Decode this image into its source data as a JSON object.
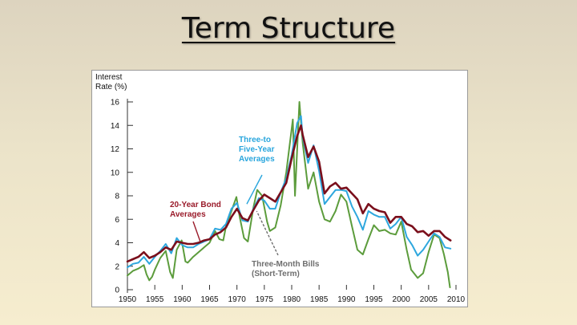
{
  "slide": {
    "title": "Term Structure"
  },
  "colors": {
    "bond20": "#7a0f1c",
    "fiveYear": "#2ea7de",
    "bills": "#5c9c3c",
    "annotationBlue": "#2aa6dd",
    "annotationRed": "#9a1b2a",
    "annotationGray": "#6e6e6e"
  },
  "chart_data": {
    "type": "line",
    "title": "",
    "ylabel_lines": [
      "Interest",
      "Rate (%)"
    ],
    "xlabel": "",
    "xlim": [
      1950,
      2010
    ],
    "ylim": [
      0,
      16
    ],
    "x_ticks": [
      1950,
      1955,
      1960,
      1965,
      1970,
      1975,
      1980,
      1985,
      1990,
      1995,
      2000,
      2005,
      2010
    ],
    "y_ticks": [
      0,
      2,
      4,
      6,
      8,
      10,
      12,
      14,
      16
    ],
    "grid": false,
    "annotations": [
      {
        "lines": [
          "Three-to",
          "Five-Year",
          "Averages"
        ],
        "color_key": "annotationBlue",
        "series": "fiveYear"
      },
      {
        "lines": [
          "20-Year Bond",
          "Averages"
        ],
        "color_key": "annotationRed",
        "series": "bond20"
      },
      {
        "lines": [
          "Three-Month Bills",
          "(Short-Term)"
        ],
        "color_key": "annotationGray",
        "series": "bills"
      }
    ],
    "series": [
      {
        "key": "bills",
        "x": [
          1950,
          1951,
          1952,
          1953,
          1953.5,
          1954,
          1954.5,
          1955,
          1956,
          1957,
          1957.8,
          1958.3,
          1959,
          1959.9,
          1960.6,
          1961,
          1962,
          1963,
          1964,
          1965,
          1966,
          1966.8,
          1967.5,
          1968,
          1969,
          1969.9,
          1970.5,
          1971.3,
          1972,
          1973,
          1973.7,
          1974.6,
          1975.5,
          1976,
          1977,
          1978,
          1979,
          1980.2,
          1980.6,
          1981.4,
          1982,
          1983,
          1984,
          1985,
          1986,
          1987,
          1988,
          1989,
          1990,
          1991,
          1992,
          1993,
          1994,
          1995,
          1996,
          1997,
          1998,
          1999,
          2000,
          2001,
          2001.8,
          2002,
          2003,
          2004,
          2005,
          2006,
          2007,
          2007.8,
          2008.5,
          2008.9
        ],
        "y": [
          1.2,
          1.6,
          1.8,
          2.1,
          1.3,
          0.8,
          1.1,
          1.7,
          2.7,
          3.3,
          1.5,
          1.0,
          3.4,
          4.2,
          2.4,
          2.3,
          2.8,
          3.2,
          3.6,
          4.0,
          5.0,
          4.3,
          4.2,
          5.4,
          6.7,
          7.9,
          6.2,
          4.4,
          4.1,
          7.0,
          8.5,
          8.0,
          5.8,
          5.0,
          5.3,
          7.2,
          10.0,
          14.5,
          8.0,
          16.0,
          12.5,
          8.6,
          10.0,
          7.5,
          6.0,
          5.8,
          6.7,
          8.1,
          7.5,
          5.4,
          3.4,
          3.0,
          4.3,
          5.5,
          5.0,
          5.1,
          4.8,
          4.7,
          5.8,
          3.4,
          1.7,
          1.6,
          1.0,
          1.4,
          3.2,
          4.7,
          4.4,
          3.0,
          1.5,
          0.2
        ]
      },
      {
        "key": "fiveYear",
        "x": [
          1950,
          1951,
          1952,
          1953,
          1954,
          1955,
          1956,
          1957,
          1958,
          1959,
          1960,
          1961,
          1962,
          1963,
          1964,
          1965,
          1966,
          1967,
          1968,
          1969,
          1970,
          1971,
          1972,
          1973,
          1974,
          1975,
          1976,
          1977,
          1978,
          1979,
          1980,
          1981,
          1981.7,
          1982,
          1983,
          1984,
          1985,
          1986,
          1987,
          1988,
          1989,
          1990,
          1991,
          1992,
          1993,
          1994,
          1995,
          1996,
          1997,
          1998,
          1999,
          2000,
          2001,
          2002,
          2003,
          2004,
          2005,
          2006,
          2007,
          2008,
          2009
        ],
        "y": [
          1.9,
          2.2,
          2.3,
          2.8,
          2.2,
          2.8,
          3.3,
          3.9,
          3.1,
          4.4,
          3.8,
          3.6,
          3.6,
          3.9,
          4.1,
          4.3,
          5.2,
          5.1,
          5.6,
          6.9,
          7.4,
          5.9,
          5.8,
          6.9,
          7.8,
          7.6,
          6.9,
          6.9,
          8.3,
          9.5,
          11.5,
          14.2,
          14.8,
          13.0,
          10.8,
          12.3,
          10.1,
          7.3,
          7.9,
          8.5,
          8.5,
          8.4,
          7.1,
          6.2,
          5.1,
          6.7,
          6.4,
          6.2,
          6.2,
          5.2,
          5.6,
          6.2,
          4.5,
          3.8,
          2.9,
          3.4,
          4.1,
          4.8,
          4.5,
          3.6,
          3.5
        ]
      },
      {
        "key": "bond20",
        "x": [
          1950,
          1951,
          1952,
          1953,
          1954,
          1955,
          1956,
          1957,
          1958,
          1959,
          1960,
          1961,
          1962,
          1963,
          1964,
          1965,
          1966,
          1967,
          1968,
          1969,
          1970,
          1971,
          1972,
          1973,
          1974,
          1975,
          1976,
          1977,
          1978,
          1979,
          1980,
          1981,
          1981.7,
          1982,
          1983,
          1984,
          1985,
          1986,
          1987,
          1988,
          1989,
          1990,
          1991,
          1992,
          1993,
          1994,
          1995,
          1996,
          1997,
          1998,
          1999,
          2000,
          2001,
          2002,
          2003,
          2004,
          2005,
          2006,
          2007,
          2008,
          2009
        ],
        "y": [
          2.4,
          2.6,
          2.8,
          3.2,
          2.7,
          2.9,
          3.2,
          3.6,
          3.4,
          4.1,
          4.0,
          3.9,
          3.9,
          4.0,
          4.2,
          4.3,
          4.7,
          4.9,
          5.3,
          6.2,
          6.9,
          6.1,
          5.9,
          6.8,
          7.6,
          8.1,
          7.8,
          7.5,
          8.3,
          9.1,
          11.2,
          13.1,
          14.0,
          13.2,
          11.3,
          12.2,
          10.9,
          8.2,
          8.8,
          9.1,
          8.6,
          8.7,
          8.2,
          7.7,
          6.5,
          7.3,
          6.9,
          6.7,
          6.6,
          5.7,
          6.2,
          6.2,
          5.6,
          5.4,
          4.9,
          5.0,
          4.6,
          5.0,
          5.0,
          4.5,
          4.2
        ]
      }
    ]
  }
}
